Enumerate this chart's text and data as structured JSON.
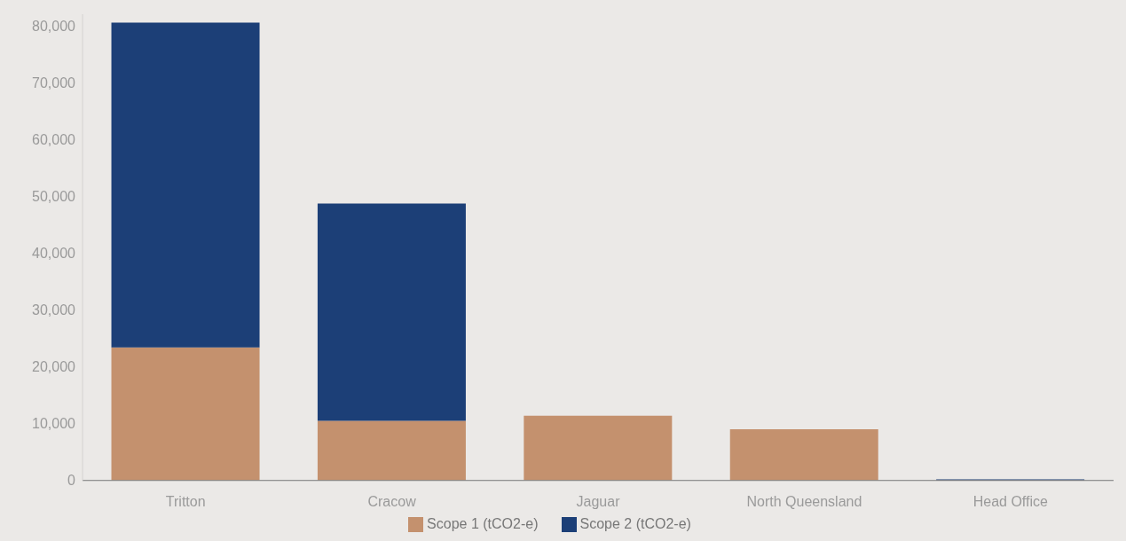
{
  "chart_data": {
    "type": "bar",
    "stacked": true,
    "categories": [
      "Tritton",
      "Cracow",
      "Jaguar",
      "North Queensland",
      "Head Office"
    ],
    "series": [
      {
        "name": "Scope 1 (tCO2-e)",
        "color": "#c4916e",
        "values": [
          23400,
          10500,
          11400,
          9000,
          0
        ]
      },
      {
        "name": "Scope 2 (tCO2-e)",
        "color": "#1c3f77",
        "values": [
          57100,
          38200,
          0,
          0,
          200
        ]
      }
    ],
    "ylim": [
      0,
      82000
    ],
    "yticks": [
      0,
      {
        "value": 10000,
        "label": "10,000"
      },
      {
        "value": 20000,
        "label": "20,000"
      },
      {
        "value": 30000,
        "label": "30,000"
      },
      {
        "value": 40000,
        "label": "40,000"
      },
      {
        "value": 50000,
        "label": "50,000"
      },
      {
        "value": 60000,
        "label": "60,000"
      },
      {
        "value": 70000,
        "label": "70,000"
      },
      {
        "value": 80000,
        "label": "80,000"
      }
    ],
    "grid": false,
    "legend": "bottom"
  }
}
